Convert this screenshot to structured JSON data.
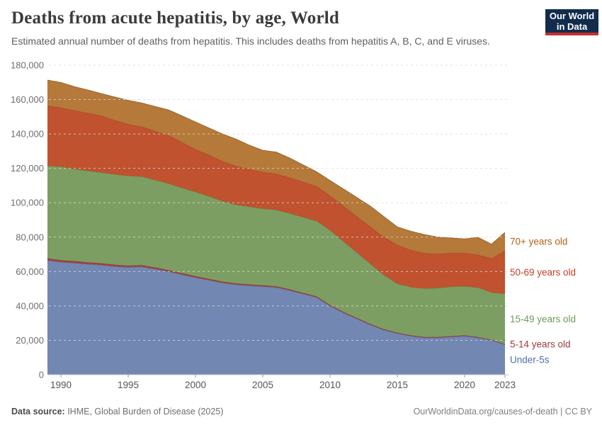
{
  "header": {
    "title": "Deaths from acute hepatitis, by age, World",
    "subtitle": "Estimated annual number of deaths from hepatitis. This includes deaths from hepatitis A, B, C, and E viruses.",
    "logo": {
      "line1": "Our World",
      "line2": "in Data",
      "bg": "#122c4e",
      "accent": "#c5302b"
    }
  },
  "footer": {
    "source_label": "Data source:",
    "source_text": " IHME, Global Burden of Disease (2025)",
    "link_text": "OurWorldinData.org/causes-of-death | CC BY"
  },
  "chart_data": {
    "type": "area",
    "stacked": true,
    "title": "Deaths from acute hepatitis, by age, World",
    "xlabel": "",
    "ylabel": "",
    "ylim": [
      0,
      180000
    ],
    "y_tick_interval": 20000,
    "grid": "dashed-horizontal",
    "legend_position": "right",
    "x": [
      1989,
      1990,
      1991,
      1992,
      1993,
      1994,
      1995,
      1996,
      1997,
      1998,
      1999,
      2000,
      2001,
      2002,
      2003,
      2004,
      2005,
      2006,
      2007,
      2008,
      2009,
      2010,
      2011,
      2012,
      2013,
      2014,
      2015,
      2016,
      2017,
      2018,
      2019,
      2020,
      2021,
      2022,
      2023
    ],
    "x_ticks": [
      1990,
      1995,
      2000,
      2005,
      2010,
      2015,
      2020,
      2023
    ],
    "series": [
      {
        "name": "Under-5s",
        "slug": "under-5s",
        "fill": "#7287b2",
        "stroke": "#52699e",
        "label_color": "#4f6cb0",
        "values": [
          66500,
          65500,
          65000,
          64300,
          63800,
          63000,
          62500,
          62800,
          61500,
          60000,
          58200,
          56500,
          55000,
          53400,
          52400,
          51800,
          51300,
          50800,
          49000,
          47000,
          45000,
          40000,
          36000,
          32500,
          29000,
          26000,
          24000,
          22500,
          21500,
          21500,
          22000,
          22500,
          21500,
          20000,
          17500
        ]
      },
      {
        "name": "5-14 years old",
        "slug": "5-14",
        "fill": "#a2423d",
        "stroke": "#8d3833",
        "label_color": "#9e3a3f",
        "values": [
          1200,
          1150,
          1100,
          1050,
          1000,
          980,
          950,
          930,
          900,
          870,
          840,
          800,
          780,
          750,
          720,
          700,
          680,
          650,
          630,
          600,
          580,
          550,
          520,
          500,
          480,
          460,
          440,
          430,
          420,
          410,
          400,
          390,
          370,
          350,
          330
        ]
      },
      {
        "name": "15-49 years old",
        "slug": "15-49",
        "fill": "#7d9e62",
        "stroke": "#5e8348",
        "label_color": "#6d9c56",
        "values": [
          53800,
          54300,
          53500,
          53200,
          52800,
          52500,
          52200,
          51500,
          50800,
          50300,
          49600,
          49000,
          48000,
          46800,
          45800,
          45200,
          44600,
          44400,
          44200,
          44000,
          43800,
          43500,
          41000,
          38000,
          35000,
          31500,
          28500,
          28000,
          28200,
          28500,
          28800,
          28500,
          28800,
          27500,
          29200
        ]
      },
      {
        "name": "50-69 years old",
        "slug": "50-69",
        "fill": "#c0522f",
        "stroke": "#9f3d1e",
        "label_color": "#c93c26",
        "values": [
          34800,
          34400,
          34000,
          33600,
          33000,
          31500,
          30000,
          29000,
          28500,
          28000,
          26500,
          24800,
          24000,
          23200,
          22500,
          21800,
          21300,
          21000,
          20800,
          20500,
          20200,
          20000,
          20500,
          21000,
          21500,
          22000,
          22500,
          21500,
          20500,
          19800,
          19500,
          19300,
          19000,
          19800,
          25000
        ]
      },
      {
        "name": "70+ years old",
        "slug": "70-plus",
        "fill": "#b5793a",
        "stroke": "#996226",
        "label_color": "#b16214",
        "values": [
          15000,
          14600,
          13900,
          13400,
          12900,
          13500,
          13900,
          13800,
          14300,
          14800,
          15400,
          15900,
          15700,
          15900,
          15600,
          14000,
          12600,
          12600,
          11400,
          9900,
          8400,
          8900,
          10000,
          11000,
          12000,
          12000,
          10500,
          11000,
          10900,
          9800,
          8800,
          8300,
          10200,
          8300,
          10700
        ]
      }
    ],
    "colors": {
      "grid": "#d9d9d9",
      "axis_line": "#c9c9c9",
      "tick": "#9b9b9b",
      "y_label": "#6e6e6e",
      "x_label": "#565656"
    }
  }
}
